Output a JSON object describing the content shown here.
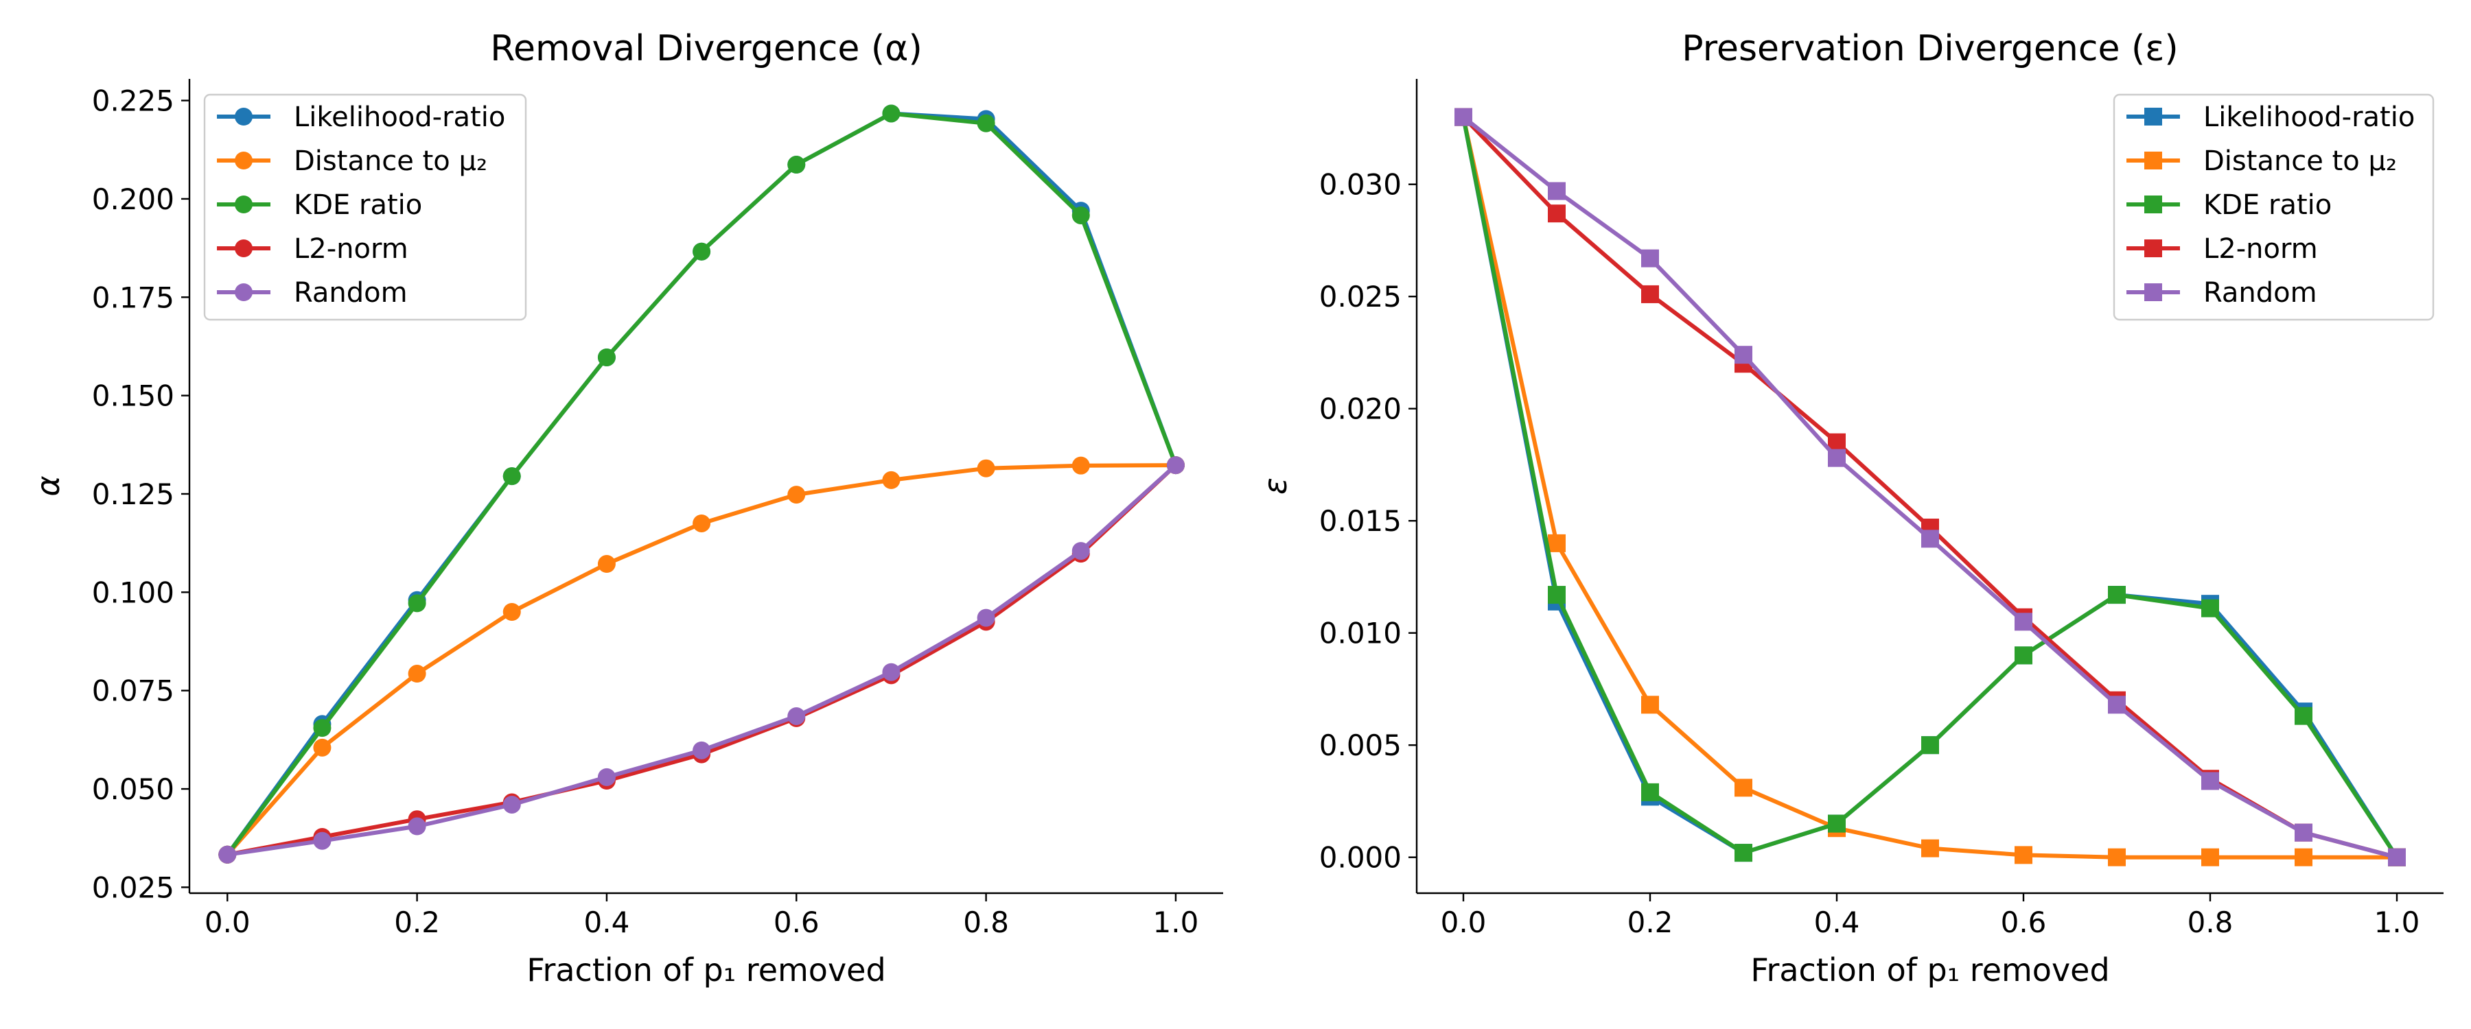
{
  "chart_data": [
    {
      "type": "line",
      "title": "Removal Divergence (α)",
      "xlabel": "Fraction of p₁ removed",
      "ylabel": "α",
      "xlim": [
        -0.04,
        1.05
      ],
      "ylim": [
        0.0235,
        0.2305
      ],
      "xticks": [
        "0.0",
        "0.2",
        "0.4",
        "0.6",
        "0.8",
        "1.0"
      ],
      "yticks": [
        "0.025",
        "0.050",
        "0.075",
        "0.100",
        "0.125",
        "0.150",
        "0.175",
        "0.200",
        "0.225"
      ],
      "marker": "circle",
      "legend_position": "upper-left",
      "x": [
        0.0,
        0.1,
        0.2,
        0.3,
        0.4,
        0.5,
        0.6,
        0.7,
        0.8,
        0.9,
        1.0
      ],
      "series": [
        {
          "name": "Likelihood-ratio",
          "color": "#1f77b4",
          "values": [
            0.0333,
            0.0665,
            0.098,
            0.1295,
            0.1597,
            0.1866,
            0.2087,
            0.2217,
            0.2203,
            0.197,
            0.1323
          ]
        },
        {
          "name": "Distance to μ₂",
          "color": "#ff7f0e",
          "values": [
            0.0333,
            0.0605,
            0.0793,
            0.095,
            0.1072,
            0.1175,
            0.1248,
            0.1285,
            0.1315,
            0.1322,
            0.1323
          ]
        },
        {
          "name": "KDE ratio",
          "color": "#2ca02c",
          "values": [
            0.0333,
            0.0655,
            0.0972,
            0.1295,
            0.1597,
            0.1866,
            0.2087,
            0.2217,
            0.2192,
            0.1958,
            0.1323
          ]
        },
        {
          "name": "L2-norm",
          "color": "#d62728",
          "values": [
            0.0333,
            0.0378,
            0.0423,
            0.0466,
            0.0521,
            0.0588,
            0.068,
            0.0789,
            0.0925,
            0.1098,
            0.1323
          ]
        },
        {
          "name": "Random",
          "color": "#9467bd",
          "values": [
            0.0333,
            0.0368,
            0.0405,
            0.046,
            0.053,
            0.0598,
            0.0685,
            0.0797,
            0.0935,
            0.1105,
            0.1323
          ]
        }
      ]
    },
    {
      "type": "line",
      "title": "Preservation Divergence (ε)",
      "xlabel": "Fraction of p₁ removed",
      "ylabel": "ε",
      "xlim": [
        -0.05,
        1.05
      ],
      "ylim": [
        -0.0016,
        0.0347
      ],
      "xticks": [
        "0.0",
        "0.2",
        "0.4",
        "0.6",
        "0.8",
        "1.0"
      ],
      "yticks": [
        "0.000",
        "0.005",
        "0.010",
        "0.015",
        "0.020",
        "0.025",
        "0.030"
      ],
      "marker": "square",
      "legend_position": "upper-right",
      "x": [
        0.0,
        0.1,
        0.2,
        0.3,
        0.4,
        0.5,
        0.6,
        0.7,
        0.8,
        0.9,
        1.0
      ],
      "series": [
        {
          "name": "Likelihood-ratio",
          "color": "#1f77b4",
          "values": [
            0.033,
            0.0114,
            0.0027,
            0.0002,
            0.0015,
            0.005,
            0.009,
            0.0117,
            0.0113,
            0.0065,
            0.0
          ]
        },
        {
          "name": "Distance to μ₂",
          "color": "#ff7f0e",
          "values": [
            0.033,
            0.014,
            0.0068,
            0.0031,
            0.0013,
            0.0004,
            0.0001,
            0.0,
            0.0,
            0.0,
            0.0
          ]
        },
        {
          "name": "KDE ratio",
          "color": "#2ca02c",
          "values": [
            0.033,
            0.0117,
            0.0029,
            0.0002,
            0.0015,
            0.005,
            0.009,
            0.0117,
            0.0111,
            0.0063,
            0.0
          ]
        },
        {
          "name": "L2-norm",
          "color": "#d62728",
          "values": [
            0.033,
            0.0287,
            0.0251,
            0.022,
            0.0185,
            0.0147,
            0.0107,
            0.007,
            0.0035,
            0.0011,
            0.0
          ]
        },
        {
          "name": "Random",
          "color": "#9467bd",
          "values": [
            0.033,
            0.0297,
            0.0267,
            0.0224,
            0.0178,
            0.0142,
            0.0105,
            0.0068,
            0.0034,
            0.0011,
            0.0
          ]
        }
      ]
    }
  ]
}
